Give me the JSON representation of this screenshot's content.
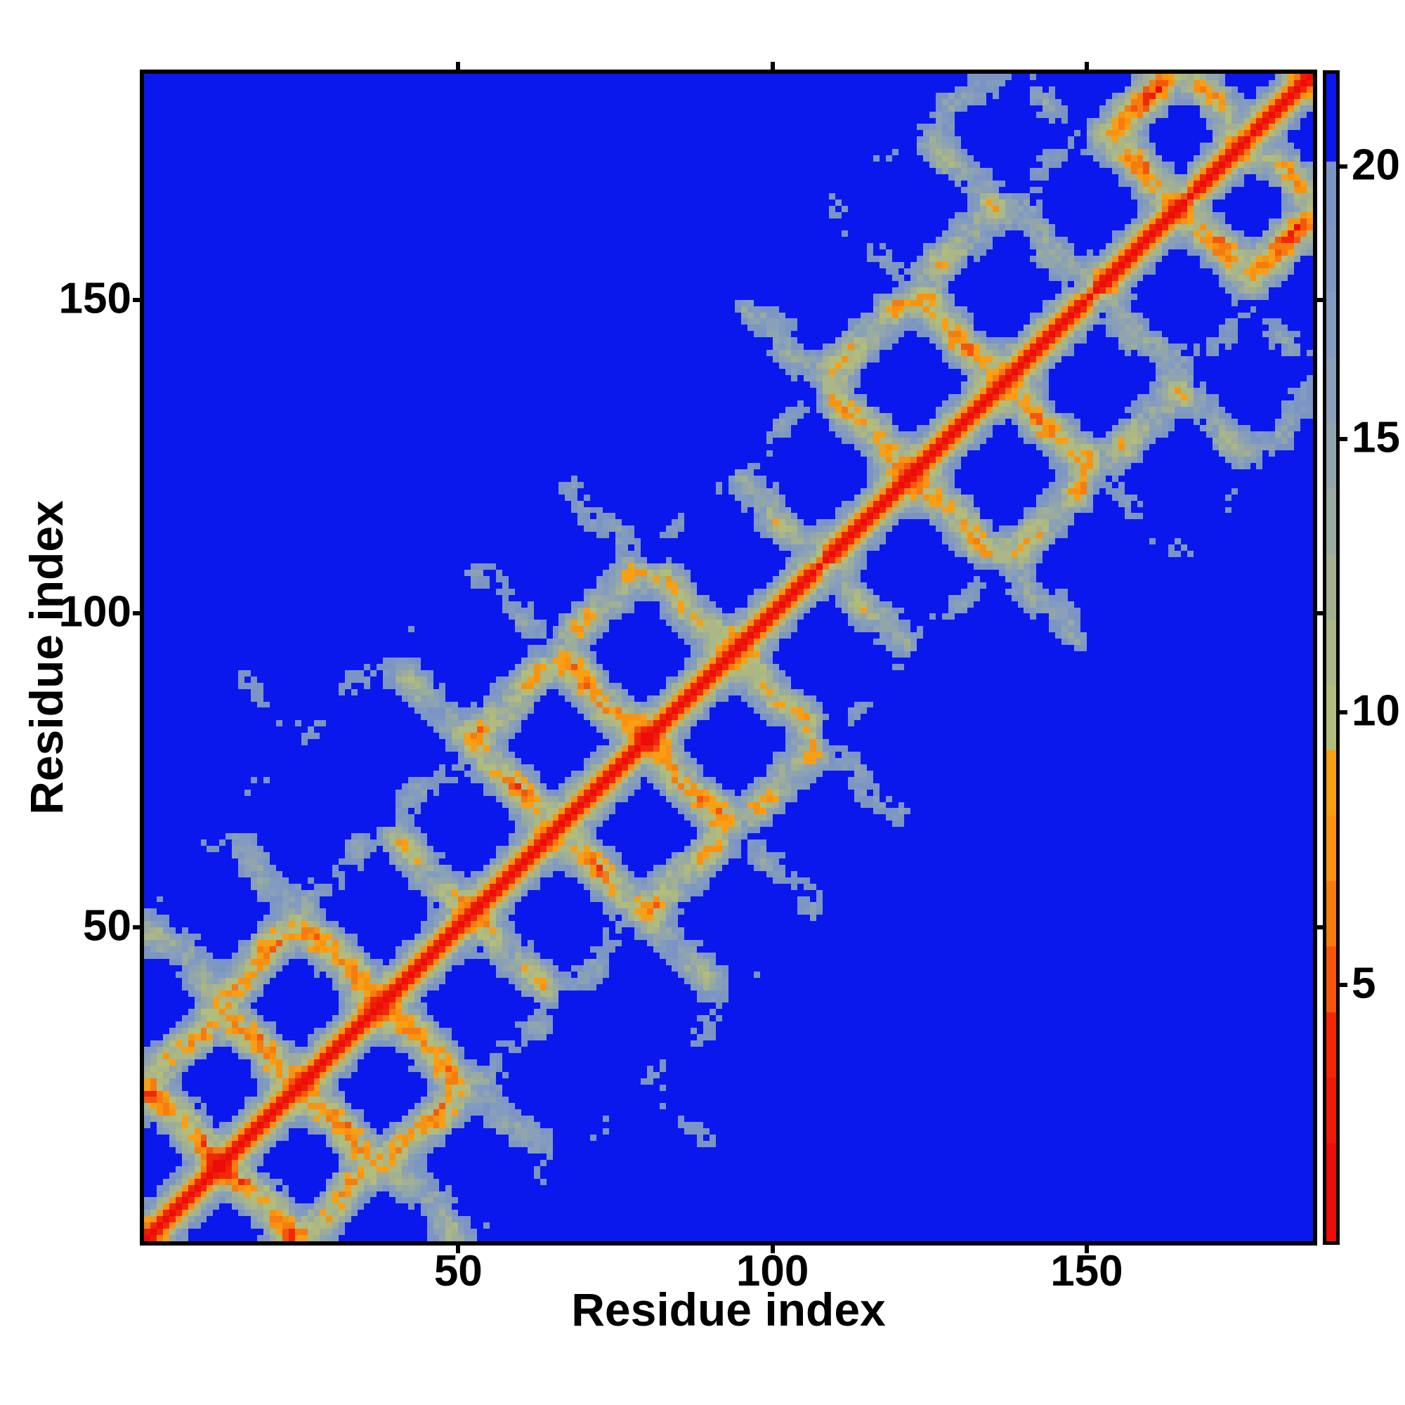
{
  "figure": {
    "background": "#ffffff",
    "spine_color": "#000000",
    "text_color": "#000000",
    "axes": {
      "xlabel": "Residue index",
      "ylabel": "Residue index",
      "x_tick_values": [
        50,
        100,
        150
      ],
      "y_tick_values": [
        50,
        100,
        150
      ]
    },
    "colorbar": {
      "tick_values": [
        5,
        10,
        15,
        20
      ],
      "vmin": 0.3,
      "vmax": 21.7
    }
  },
  "chart_data": {
    "type": "heatmap",
    "title": "",
    "xlabel": "Residue index",
    "ylabel": "Residue index",
    "x_range": [
      1,
      186
    ],
    "y_range": [
      1,
      186
    ],
    "n_residues": 186,
    "value_range": [
      0.3,
      21.7
    ],
    "colorbar_ticks": [
      5,
      10,
      15,
      20
    ],
    "legend_position": "right-colorbar",
    "grid": false,
    "description": "Symmetric residue-residue distance map of a ~186-residue protein. A thin red line runs along the main diagonal (zero/short distances), flanked by orange near-diagonal bands. Fractal-shaped pale green / slate-blue contact clusters hug the diagonal from bottom-left to top-right (four consecutive structural domains with antiparallel hairpin streaks crossing the diagonal), while all long-range pairs saturate to uniform bright blue at the colormap maximum (~21).",
    "palette": {
      "far_background": "#0a18ee",
      "diagonal_red": "#ec0c08",
      "near_band_orange": "#f67c10",
      "mid_khaki": "#abb785",
      "mid_slate": "#89a0b8"
    },
    "color_bins": [
      {
        "max": 2.1,
        "color": "#ec0c08"
      },
      {
        "max": 3.3,
        "color": "#ef1a08"
      },
      {
        "max": 4.5,
        "color": "#f12708"
      },
      {
        "max": 5.7,
        "color": "#f4570c"
      },
      {
        "max": 6.9,
        "color": "#f67c10"
      },
      {
        "max": 8.1,
        "color": "#f89311"
      },
      {
        "max": 9.3,
        "color": "#f99f14"
      },
      {
        "max": 10.5,
        "color": "#b2bd7b"
      },
      {
        "max": 11.7,
        "color": "#abb785"
      },
      {
        "max": 12.9,
        "color": "#a3b192"
      },
      {
        "max": 14.1,
        "color": "#9aab9f"
      },
      {
        "max": 15.3,
        "color": "#91a5ac"
      },
      {
        "max": 16.5,
        "color": "#89a0b8"
      },
      {
        "max": 17.7,
        "color": "#829bc0"
      },
      {
        "max": 18.9,
        "color": "#7e97c2"
      },
      {
        "max": 20.1,
        "color": "#7b94c4"
      },
      {
        "max": 99.0,
        "color": "#0a18ee"
      }
    ],
    "generator": {
      "comment": "Deterministic synthesis of the depicted distance matrix: antiparallel chain segments (hairpins) grouped into four packed domains.",
      "turn_boundaries": [
        0,
        13,
        24,
        38,
        52,
        66,
        79,
        94,
        108,
        122,
        137,
        151,
        166,
        176,
        186
      ],
      "segment_centers": [
        [
          0,
          0
        ],
        [
          7,
          2
        ],
        [
          3.5,
          8.5
        ],
        [
          10.5,
          9
        ],
        [
          22,
          6
        ],
        [
          28.5,
          11
        ],
        [
          23,
          16
        ],
        [
          31,
          22
        ],
        [
          44,
          20
        ],
        [
          50,
          26.5
        ],
        [
          43.5,
          31
        ],
        [
          57,
          36
        ],
        [
          63.5,
          31
        ],
        [
          60,
          40.5
        ]
      ],
      "rise": 3.45,
      "wobble_amp": 2.0,
      "wobble_freq": 0.75,
      "smooth_passes": 2,
      "noise_amp": 2.4,
      "noise_min_sep": 4,
      "noise_seed": 7.31
    }
  }
}
